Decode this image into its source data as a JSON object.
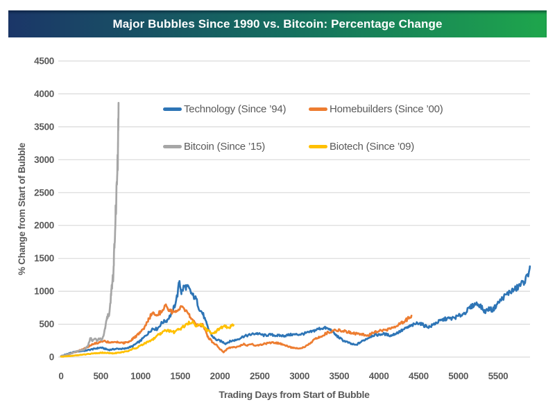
{
  "banner": {
    "title": "Major Bubbles Since 1990 vs. Bitcoin: Percentage Change",
    "gradient_left": "#1B3668",
    "gradient_right": "#1EA64C"
  },
  "chart_data": {
    "type": "line",
    "title": "Major Bubbles Since 1990 vs. Bitcoin: Percentage Change",
    "xlabel": "Trading Days from Start of Bubble",
    "ylabel": "% Change from Start of Bubble",
    "xlim": [
      0,
      5950
    ],
    "ylim": [
      0,
      4500
    ],
    "x_ticks": [
      0,
      500,
      1000,
      1500,
      2000,
      2500,
      3000,
      3500,
      4000,
      4500,
      5000,
      5500
    ],
    "y_ticks": [
      0,
      500,
      1000,
      1500,
      2000,
      2500,
      3000,
      3500,
      4000,
      4500
    ],
    "grid": true,
    "legend_position": "top-center",
    "axis_text_color": "#595959",
    "gridline_color": "#D9D9D9",
    "series": [
      {
        "name": "Technology (Since ’94)",
        "color": "#2E75B6",
        "points": [
          [
            0,
            15
          ],
          [
            100,
            55
          ],
          [
            200,
            85
          ],
          [
            300,
            100
          ],
          [
            400,
            120
          ],
          [
            500,
            140
          ],
          [
            600,
            110
          ],
          [
            700,
            130
          ],
          [
            800,
            125
          ],
          [
            900,
            160
          ],
          [
            1000,
            250
          ],
          [
            1100,
            380
          ],
          [
            1150,
            440
          ],
          [
            1210,
            420
          ],
          [
            1270,
            510
          ],
          [
            1330,
            545
          ],
          [
            1390,
            660
          ],
          [
            1430,
            800
          ],
          [
            1465,
            980
          ],
          [
            1490,
            1190
          ],
          [
            1515,
            1000
          ],
          [
            1545,
            1080
          ],
          [
            1575,
            1065
          ],
          [
            1605,
            1030
          ],
          [
            1635,
            955
          ],
          [
            1665,
            900
          ],
          [
            1700,
            860
          ],
          [
            1735,
            740
          ],
          [
            1790,
            650
          ],
          [
            1850,
            450
          ],
          [
            1900,
            330
          ],
          [
            1945,
            270
          ],
          [
            2005,
            240
          ],
          [
            2070,
            200
          ],
          [
            2125,
            235
          ],
          [
            2200,
            265
          ],
          [
            2290,
            320
          ],
          [
            2375,
            335
          ],
          [
            2460,
            350
          ],
          [
            2550,
            330
          ],
          [
            2640,
            350
          ],
          [
            2725,
            330
          ],
          [
            2810,
            315
          ],
          [
            2900,
            335
          ],
          [
            2990,
            350
          ],
          [
            3070,
            370
          ],
          [
            3160,
            385
          ],
          [
            3250,
            420
          ],
          [
            3330,
            440
          ],
          [
            3400,
            420
          ],
          [
            3460,
            340
          ],
          [
            3550,
            250
          ],
          [
            3650,
            195
          ],
          [
            3710,
            180
          ],
          [
            3780,
            240
          ],
          [
            3850,
            290
          ],
          [
            3920,
            330
          ],
          [
            4000,
            330
          ],
          [
            4060,
            345
          ],
          [
            4150,
            330
          ],
          [
            4230,
            380
          ],
          [
            4300,
            415
          ],
          [
            4380,
            450
          ],
          [
            4440,
            480
          ],
          [
            4500,
            520
          ],
          [
            4570,
            490
          ],
          [
            4640,
            470
          ],
          [
            4700,
            510
          ],
          [
            4780,
            540
          ],
          [
            4850,
            570
          ],
          [
            4920,
            590
          ],
          [
            5000,
            640
          ],
          [
            5080,
            680
          ],
          [
            5150,
            740
          ],
          [
            5220,
            790
          ],
          [
            5270,
            780
          ],
          [
            5330,
            700
          ],
          [
            5390,
            760
          ],
          [
            5430,
            730
          ],
          [
            5480,
            800
          ],
          [
            5530,
            850
          ],
          [
            5580,
            900
          ],
          [
            5630,
            950
          ],
          [
            5680,
            1005
          ],
          [
            5730,
            1060
          ],
          [
            5780,
            1130
          ],
          [
            5830,
            1180
          ],
          [
            5870,
            1240
          ],
          [
            5900,
            1380
          ]
        ]
      },
      {
        "name": "Homebuilders (Since ’00)",
        "color": "#ED7D31",
        "points": [
          [
            0,
            10
          ],
          [
            100,
            45
          ],
          [
            200,
            85
          ],
          [
            300,
            130
          ],
          [
            400,
            190
          ],
          [
            500,
            235
          ],
          [
            550,
            245
          ],
          [
            600,
            235
          ],
          [
            650,
            230
          ],
          [
            700,
            225
          ],
          [
            750,
            215
          ],
          [
            800,
            210
          ],
          [
            850,
            235
          ],
          [
            900,
            280
          ],
          [
            950,
            330
          ],
          [
            1000,
            390
          ],
          [
            1050,
            440
          ],
          [
            1100,
            560
          ],
          [
            1150,
            650
          ],
          [
            1200,
            640
          ],
          [
            1250,
            680
          ],
          [
            1310,
            810
          ],
          [
            1360,
            730
          ],
          [
            1400,
            700
          ],
          [
            1450,
            670
          ],
          [
            1500,
            740
          ],
          [
            1560,
            690
          ],
          [
            1620,
            615
          ],
          [
            1700,
            510
          ],
          [
            1790,
            495
          ],
          [
            1850,
            300
          ],
          [
            1900,
            230
          ],
          [
            1945,
            190
          ],
          [
            2000,
            120
          ],
          [
            2050,
            75
          ],
          [
            2100,
            140
          ],
          [
            2160,
            150
          ],
          [
            2230,
            160
          ],
          [
            2300,
            190
          ],
          [
            2350,
            170
          ],
          [
            2400,
            200
          ],
          [
            2450,
            175
          ],
          [
            2520,
            195
          ],
          [
            2600,
            215
          ],
          [
            2660,
            215
          ],
          [
            2750,
            200
          ],
          [
            2840,
            170
          ],
          [
            2930,
            140
          ],
          [
            3010,
            125
          ],
          [
            3100,
            170
          ],
          [
            3190,
            265
          ],
          [
            3280,
            330
          ],
          [
            3360,
            385
          ],
          [
            3450,
            400
          ],
          [
            3550,
            390
          ],
          [
            3650,
            380
          ],
          [
            3760,
            350
          ],
          [
            3860,
            320
          ],
          [
            3970,
            385
          ],
          [
            4060,
            420
          ],
          [
            4140,
            440
          ],
          [
            4210,
            470
          ],
          [
            4290,
            510
          ],
          [
            4350,
            560
          ],
          [
            4410,
            630
          ]
        ]
      },
      {
        "name": "Bitcoin (Since ’15)",
        "color": "#A6A6A6",
        "points": [
          [
            0,
            15
          ],
          [
            80,
            40
          ],
          [
            160,
            70
          ],
          [
            240,
            95
          ],
          [
            300,
            120
          ],
          [
            340,
            180
          ],
          [
            370,
            300
          ],
          [
            395,
            250
          ],
          [
            425,
            285
          ],
          [
            455,
            260
          ],
          [
            485,
            290
          ],
          [
            510,
            270
          ],
          [
            535,
            320
          ],
          [
            555,
            430
          ],
          [
            575,
            560
          ],
          [
            590,
            620
          ],
          [
            600,
            580
          ],
          [
            615,
            700
          ],
          [
            628,
            900
          ],
          [
            636,
            1050
          ],
          [
            642,
            1000
          ],
          [
            650,
            1200
          ],
          [
            656,
            1150
          ],
          [
            664,
            1400
          ],
          [
            670,
            1700
          ],
          [
            674,
            1650
          ],
          [
            680,
            1900
          ],
          [
            686,
            2200
          ],
          [
            690,
            2100
          ],
          [
            695,
            2400
          ],
          [
            700,
            2700
          ],
          [
            704,
            2600
          ],
          [
            708,
            2900
          ],
          [
            711,
            3100
          ],
          [
            714,
            2950
          ],
          [
            717,
            3300
          ],
          [
            720,
            3550
          ],
          [
            724,
            3864
          ]
        ]
      },
      {
        "name": "Biotech (Since ’09)",
        "color": "#FFC000",
        "points": [
          [
            0,
            5
          ],
          [
            150,
            20
          ],
          [
            300,
            40
          ],
          [
            450,
            60
          ],
          [
            550,
            65
          ],
          [
            650,
            60
          ],
          [
            750,
            70
          ],
          [
            850,
            95
          ],
          [
            950,
            140
          ],
          [
            1050,
            210
          ],
          [
            1150,
            270
          ],
          [
            1250,
            350
          ],
          [
            1310,
            390
          ],
          [
            1370,
            400
          ],
          [
            1420,
            385
          ],
          [
            1480,
            430
          ],
          [
            1540,
            465
          ],
          [
            1600,
            505
          ],
          [
            1650,
            520
          ],
          [
            1700,
            470
          ],
          [
            1760,
            495
          ],
          [
            1820,
            430
          ],
          [
            1880,
            385
          ],
          [
            1930,
            370
          ],
          [
            1990,
            425
          ],
          [
            2050,
            455
          ],
          [
            2100,
            435
          ],
          [
            2140,
            460
          ],
          [
            2170,
            485
          ]
        ]
      }
    ]
  }
}
